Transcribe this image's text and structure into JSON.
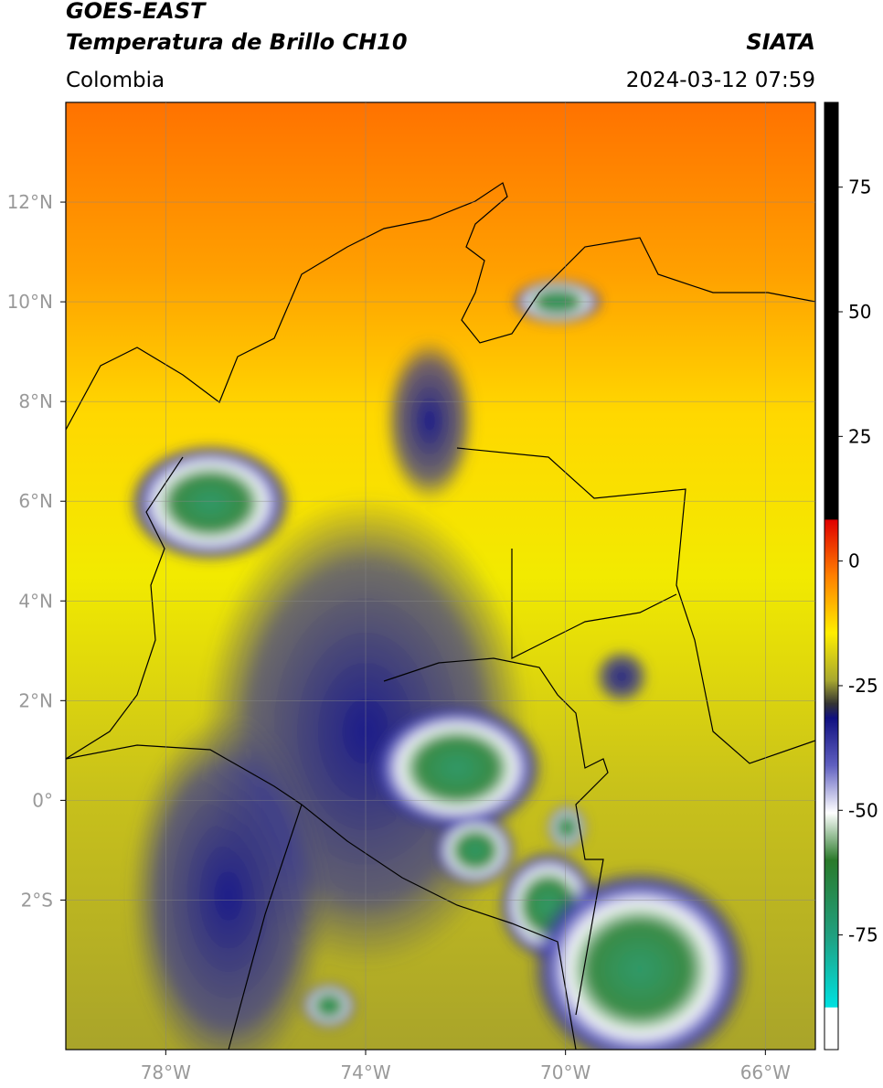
{
  "header": {
    "title": "GOES-EAST",
    "subtitle": "Temperatura de Brillo CH10",
    "source": "SIATA",
    "region": "Colombia",
    "timestamp": "2024-03-12 07:59"
  },
  "map": {
    "lonlim": [
      -80,
      -65
    ],
    "latlim": [
      -5,
      14
    ],
    "lon_ticks": [
      {
        "value": -78,
        "label": "78°W"
      },
      {
        "value": -74,
        "label": "74°W"
      },
      {
        "value": -70,
        "label": "70°W"
      },
      {
        "value": -66,
        "label": "66°W"
      }
    ],
    "lat_ticks": [
      {
        "value": 12,
        "label": "12°N"
      },
      {
        "value": 10,
        "label": "10°N"
      },
      {
        "value": 8,
        "label": "8°N"
      },
      {
        "value": 6,
        "label": "6°N"
      },
      {
        "value": 4,
        "label": "4°N"
      },
      {
        "value": 2,
        "label": "2°N"
      },
      {
        "value": 0,
        "label": "0°"
      },
      {
        "value": -2,
        "label": "2°S"
      }
    ]
  },
  "colorbar": {
    "lim": [
      -98,
      92
    ],
    "ticks": [
      75,
      50,
      25,
      0,
      -25,
      -50,
      -75
    ]
  }
}
